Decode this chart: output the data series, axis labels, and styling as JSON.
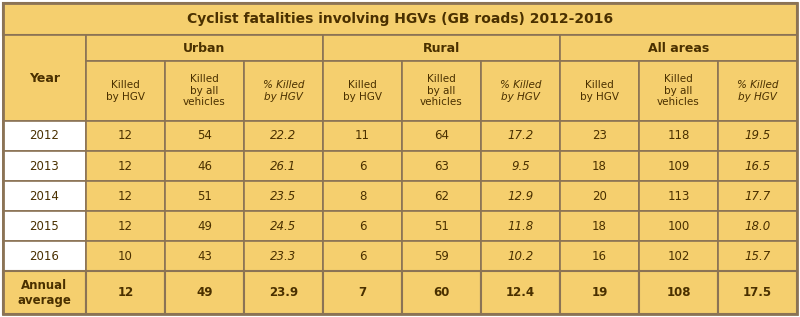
{
  "title": "Cyclist fatalities involving HGVs (GB roads) 2012-2016",
  "title_bg": "#F5CF6E",
  "header_bg": "#F5CF6E",
  "year_bg": "#FFFFFF",
  "data_bg": "#F5CF6E",
  "white_bg": "#FFFFFF",
  "border_color": "#8B7355",
  "text_color": "#4A3000",
  "col_headers": [
    "Year",
    "Killed\nby HGV",
    "Killed\nby all\nvehicles",
    "% Killed\nby HGV",
    "Killed\nby HGV",
    "Killed\nby all\nvehicles",
    "% Killed\nby HGV",
    "Killed\nby HGV",
    "Killed\nby all\nvehicles",
    "% Killed\nby HGV"
  ],
  "rows": [
    [
      "2012",
      "12",
      "54",
      "22.2",
      "11",
      "64",
      "17.2",
      "23",
      "118",
      "19.5"
    ],
    [
      "2013",
      "12",
      "46",
      "26.1",
      "6",
      "63",
      "9.5",
      "18",
      "109",
      "16.5"
    ],
    [
      "2014",
      "12",
      "51",
      "23.5",
      "8",
      "62",
      "12.9",
      "20",
      "113",
      "17.7"
    ],
    [
      "2015",
      "12",
      "49",
      "24.5",
      "6",
      "51",
      "11.8",
      "18",
      "100",
      "18.0"
    ],
    [
      "2016",
      "10",
      "43",
      "23.3",
      "6",
      "59",
      "10.2",
      "16",
      "102",
      "15.7"
    ]
  ],
  "avg_row": [
    "Annual\naverage",
    "12",
    "49",
    "23.9",
    "7",
    "60",
    "12.4",
    "19",
    "108",
    "17.5"
  ],
  "italic_cols": [
    3,
    6,
    9
  ],
  "col_widths_rel": [
    1.05,
    1.0,
    1.0,
    1.0,
    1.0,
    1.0,
    1.0,
    1.0,
    1.0,
    1.0
  ]
}
